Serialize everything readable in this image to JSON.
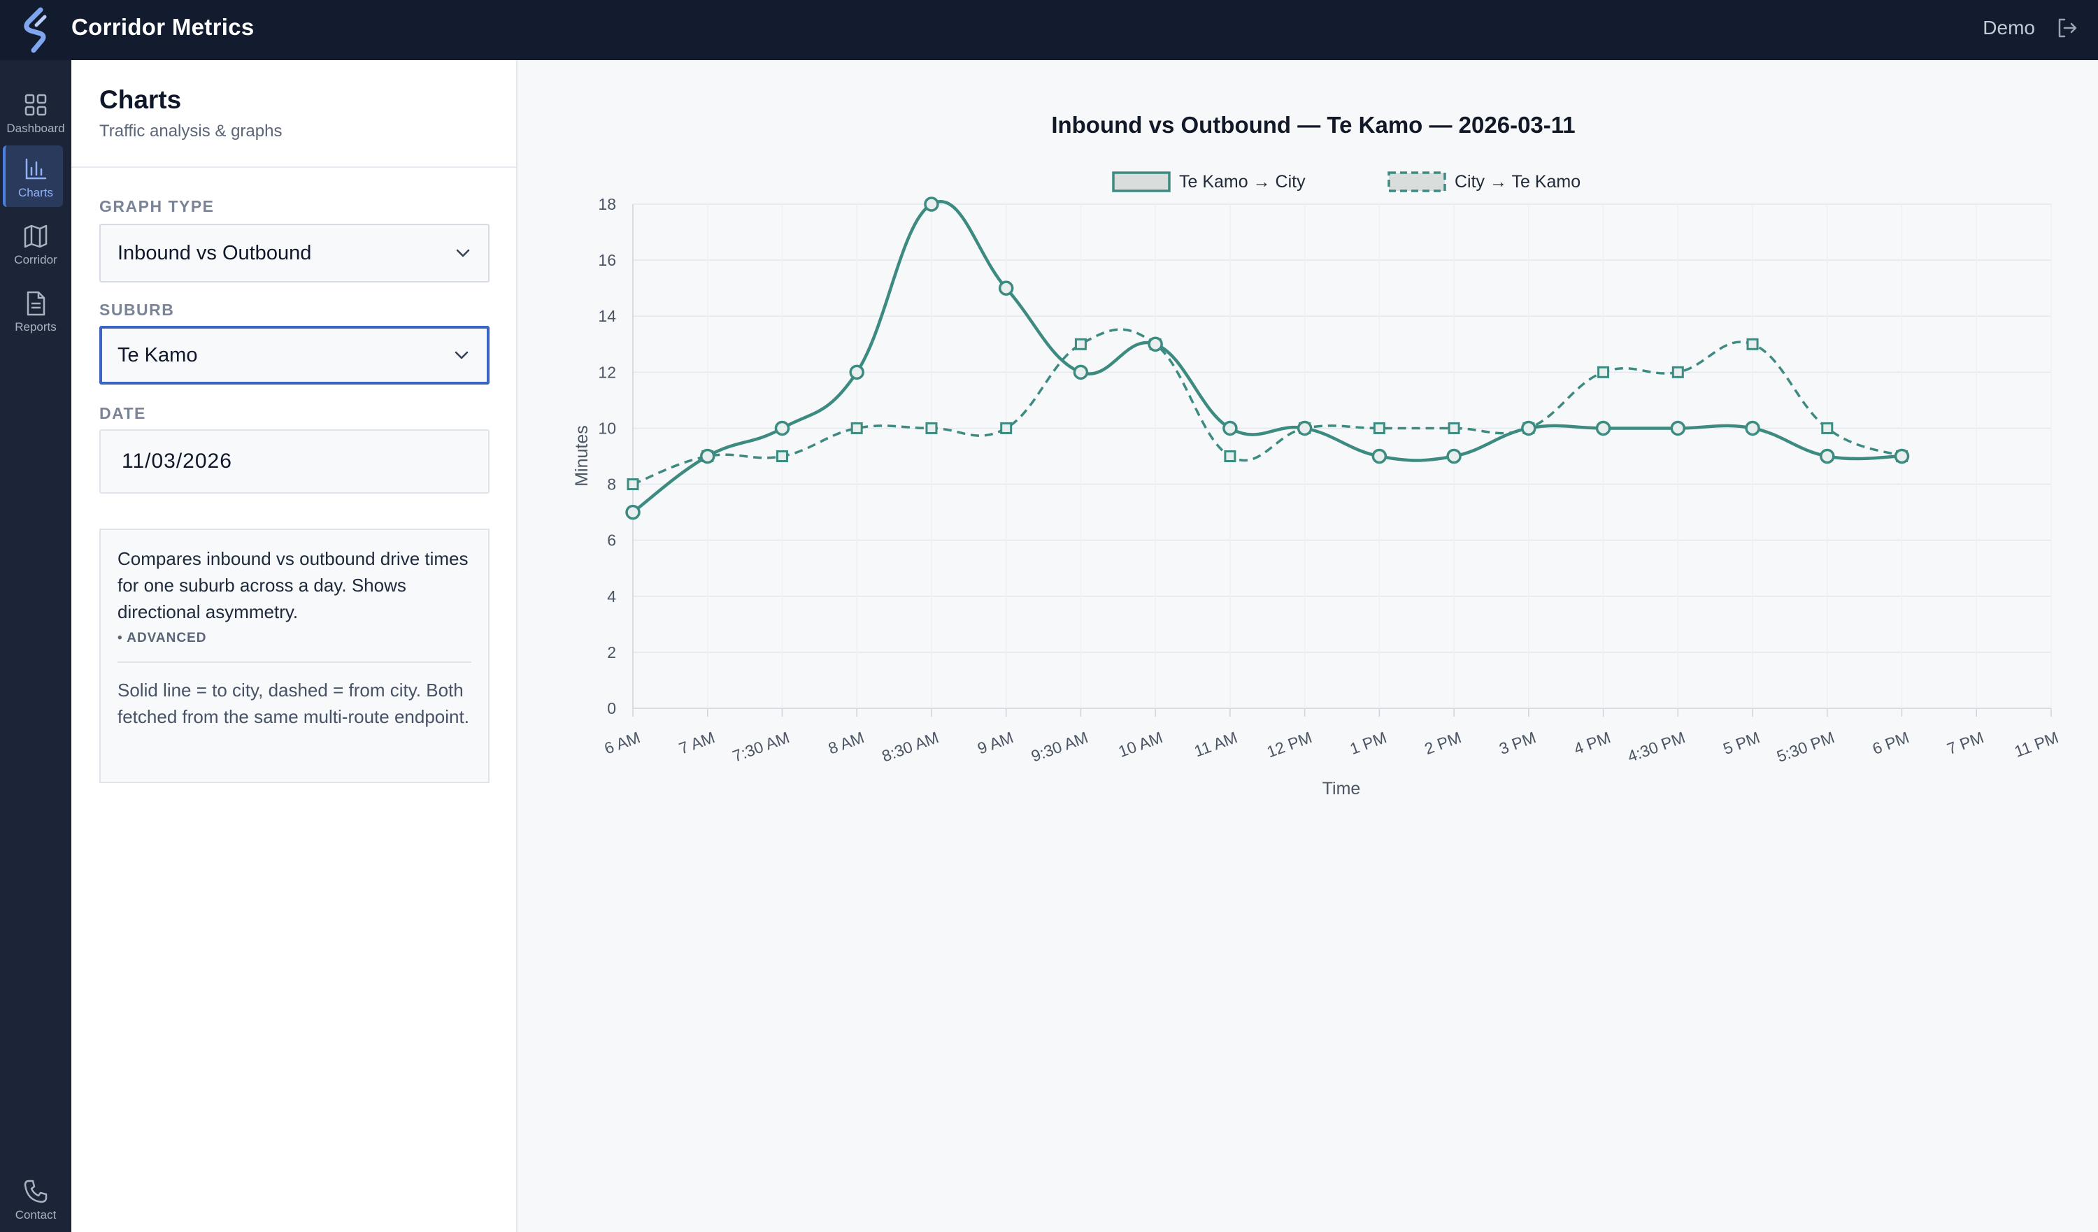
{
  "app": {
    "title": "Corridor Metrics",
    "user": "Demo"
  },
  "nav": {
    "items": [
      {
        "label": "Dashboard",
        "icon": "grid-icon",
        "active": false
      },
      {
        "label": "Charts",
        "icon": "bar-chart-icon",
        "active": true
      },
      {
        "label": "Corridor",
        "icon": "map-icon",
        "active": false
      },
      {
        "label": "Reports",
        "icon": "document-icon",
        "active": false
      }
    ],
    "contact": {
      "label": "Contact",
      "icon": "phone-icon"
    }
  },
  "panel": {
    "title": "Charts",
    "subtitle": "Traffic analysis & graphs",
    "graph_type": {
      "label": "GRAPH TYPE",
      "value": "Inbound vs Outbound"
    },
    "suburb": {
      "label": "SUBURB",
      "value": "Te Kamo"
    },
    "date": {
      "label": "DATE",
      "value": "11/03/2026"
    },
    "info": {
      "description": "Compares inbound vs outbound drive times for one suburb across a day. Shows directional asymmetry.",
      "tag": "• ADVANCED",
      "note": "Solid line = to city, dashed = from city. Both fetched from the same multi-route endpoint."
    }
  },
  "colors": {
    "accent": "#3d8b80",
    "topbar": "#131b2e",
    "rail": "#1c2438",
    "focus": "#3b63c4"
  },
  "chart_data": {
    "type": "line",
    "title": "Inbound vs Outbound — Te Kamo — 2026-03-11",
    "xlabel": "Time",
    "ylabel": "Minutes",
    "ylim": [
      0,
      18
    ],
    "yticks": [
      0,
      2,
      4,
      6,
      8,
      10,
      12,
      14,
      16,
      18
    ],
    "grid": true,
    "legend_position": "top-center",
    "categories": [
      "6 AM",
      "7 AM",
      "7:30 AM",
      "8 AM",
      "8:30 AM",
      "9 AM",
      "9:30 AM",
      "10 AM",
      "11 AM",
      "12 PM",
      "1 PM",
      "2 PM",
      "3 PM",
      "4 PM",
      "4:30 PM",
      "5 PM",
      "5:30 PM",
      "6 PM",
      "7 PM",
      "11 PM"
    ],
    "series": [
      {
        "name": "Te Kamo → City",
        "style": "solid",
        "marker": "circle",
        "values": [
          7,
          9,
          10,
          12,
          18,
          15,
          12,
          13,
          10,
          10,
          9,
          9,
          10,
          10,
          10,
          10,
          9,
          9,
          null,
          null
        ]
      },
      {
        "name": "City → Te Kamo",
        "style": "dashed",
        "marker": "square",
        "values": [
          8,
          9,
          9,
          10,
          10,
          10,
          13,
          13,
          9,
          10,
          10,
          10,
          10,
          12,
          12,
          13,
          10,
          9,
          null,
          null
        ]
      }
    ]
  }
}
